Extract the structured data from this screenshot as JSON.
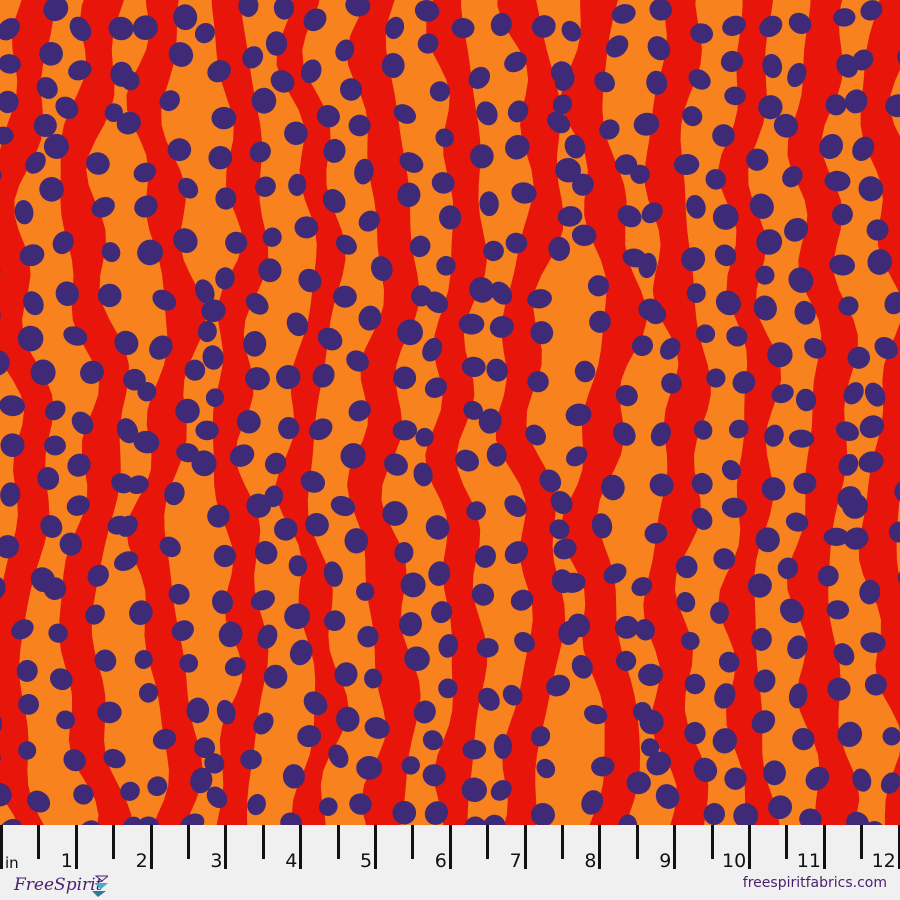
{
  "colors": {
    "red": "#e8150a",
    "orange": "#f7821e",
    "dot": "#3f2a78",
    "ruler_bg": "#f0f0f0",
    "brand": "#4a1e6e"
  },
  "ruler": {
    "unit": "in",
    "labels": [
      "1",
      "2",
      "3",
      "4",
      "5",
      "6",
      "7",
      "8",
      "9",
      "10",
      "11",
      "12"
    ]
  },
  "brand": {
    "logo_text": "FreeSpirit",
    "website": "freespiritfabrics.com"
  }
}
